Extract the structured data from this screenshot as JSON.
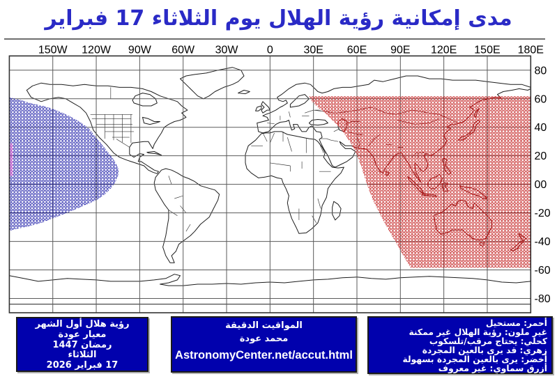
{
  "title": "مدى إمكانية رؤية الهلال يوم الثلاثاء 17 فبراير",
  "map": {
    "lon_values": [
      -150,
      -120,
      -90,
      -60,
      -30,
      0,
      30,
      60,
      90,
      120,
      150,
      180
    ],
    "lon_labels": [
      "150W",
      "120W",
      "90W",
      "60W",
      "30W",
      "0",
      "30E",
      "60E",
      "90E",
      "120E",
      "150E",
      "180E"
    ],
    "lat_values": [
      80,
      60,
      40,
      20,
      0,
      -20,
      -40,
      -60,
      -80
    ],
    "lat_labels": [
      "80",
      "60",
      "40",
      "20",
      "00",
      "-20",
      "-40",
      "-60",
      "-80"
    ]
  },
  "map_data": {
    "type": "visibility-map",
    "projection": "equirectangular",
    "lon_range": [
      -180,
      180
    ],
    "lat_range": [
      -90,
      90
    ],
    "grid": {
      "lon_step_deg": 30,
      "lat_step_deg": 20
    },
    "regions": [
      {
        "name": "impossible-red",
        "label": "أحمر: مستحيل",
        "color": "#c32020",
        "tint": "#a31818",
        "polygon": [
          [
            27,
            61.8
          ],
          [
            29,
            58
          ],
          [
            33,
            54
          ],
          [
            38,
            50
          ],
          [
            43,
            45
          ],
          [
            47,
            41
          ],
          [
            51,
            36
          ],
          [
            55,
            30
          ],
          [
            58,
            25
          ],
          [
            61,
            18
          ],
          [
            63.5,
            11
          ],
          [
            66,
            3
          ],
          [
            68,
            -3
          ],
          [
            71,
            -11
          ],
          [
            75,
            -19
          ],
          [
            79,
            -27
          ],
          [
            83,
            -34
          ],
          [
            87,
            -41
          ],
          [
            91,
            -48
          ],
          [
            95,
            -55
          ],
          [
            97,
            -58.5
          ],
          [
            180,
            -58.5
          ],
          [
            180,
            61.8
          ]
        ]
      },
      {
        "name": "needs-telescope-navy",
        "label": "كحلي: يحتاج مرقب/تلسكوب",
        "color": "#2323aa",
        "tint": "#2526a8",
        "polygon": [
          [
            -180,
            61
          ],
          [
            -172,
            59
          ],
          [
            -164,
            56.5
          ],
          [
            -157,
            55
          ],
          [
            -150,
            53
          ],
          [
            -143,
            50
          ],
          [
            -136,
            46.5
          ],
          [
            -130,
            43
          ],
          [
            -125,
            39
          ],
          [
            -121,
            34
          ],
          [
            -117,
            29
          ],
          [
            -113,
            24
          ],
          [
            -109,
            19
          ],
          [
            -106,
            14
          ],
          [
            -104.5,
            10
          ],
          [
            -105,
            6
          ],
          [
            -107,
            1
          ],
          [
            -110,
            -3
          ],
          [
            -114,
            -7
          ],
          [
            -119,
            -10.5
          ],
          [
            -125,
            -13.5
          ],
          [
            -132,
            -16.5
          ],
          [
            -140,
            -20
          ],
          [
            -149,
            -23.5
          ],
          [
            -158,
            -27
          ],
          [
            -167,
            -29.5
          ],
          [
            -174,
            -31
          ],
          [
            -180,
            -32.5
          ]
        ]
      },
      {
        "name": "maybe-naked-eye-pink",
        "label": "زهري: قد يرى بالعين المجردة",
        "color": "#cb3fc3",
        "tint": "#cb3fc3",
        "polygon": [
          [
            -180,
            28.8
          ],
          [
            -177.3,
            28.8
          ],
          [
            -177.3,
            6
          ],
          [
            -180,
            6
          ]
        ]
      }
    ]
  },
  "panels": {
    "observation": {
      "lines": [
        "رؤية هلال أول الشهر",
        "معيار عودة",
        "رمضان 1447",
        "الثلاثاء",
        "17 فبراير 2026"
      ]
    },
    "credits": {
      "lines": [
        "المواقيت الدقيقة",
        "محمد عودة"
      ],
      "url": "AstronomyCenter.net/accut.html"
    },
    "legend": {
      "lines": [
        "أحمر: مستحيل",
        "غير ملون: رؤية الهلال غير ممكنة",
        "كحلي: يحتاج مرقب/تلسكوب",
        "زهري: قد يرى بالعين المجردة",
        "أخضر: يرى بالعين المجردة بسهولة",
        "أزرق سماوي: غير معروف"
      ]
    }
  },
  "colors": {
    "title": "#2a2ac6",
    "panel_bg": "#0101ad",
    "panel_text": "#ffffff",
    "red_region": "#c32020",
    "navy_region": "#2323aa",
    "pink_region": "#cb3fc3"
  }
}
